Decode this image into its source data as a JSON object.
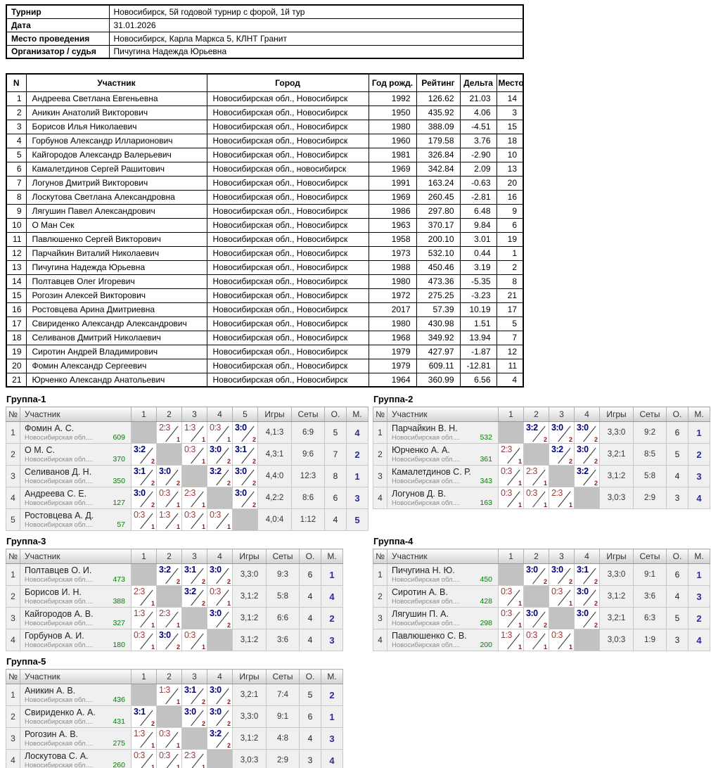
{
  "info": {
    "rows": [
      {
        "label": "Турнир",
        "value": "Новосибирск, 5й годовой турнир с форой, 1й тур"
      },
      {
        "label": "Дата",
        "value": "31.01.2026"
      },
      {
        "label": "Место проведения",
        "value": "Новосибирск, Карла Маркса 5, КЛНТ Гранит"
      },
      {
        "label": "Организатор / судья",
        "value": "Пичугина Надежда Юрьевна"
      }
    ]
  },
  "participants": {
    "headers": [
      "N",
      "Участник",
      "Город",
      "Год рожд.",
      "Рейтинг",
      "Дельта",
      "Место"
    ],
    "rows": [
      [
        "1",
        "Андреева Светлана Евгеньевна",
        "Новосибирская обл., Новосибирск",
        "1992",
        "126.62",
        "21.03",
        "14"
      ],
      [
        "2",
        "Аникин Анатолий Викторович",
        "Новосибирская обл., Новосибирск",
        "1950",
        "435.92",
        "4.06",
        "3"
      ],
      [
        "3",
        "Борисов Илья Николаевич",
        "Новосибирская обл., Новосибирск",
        "1980",
        "388.09",
        "-4.51",
        "15"
      ],
      [
        "4",
        "Горбунов Александр Илларионович",
        "Новосибирская обл., Новосибирск",
        "1960",
        "179.58",
        "3.76",
        "18"
      ],
      [
        "5",
        "Кайгородов Александр Валерьевич",
        "Новосибирская обл., Новосибирск",
        "1981",
        "326.84",
        "-2.90",
        "10"
      ],
      [
        "6",
        "Камалетдинов Сергей Рашитович",
        "Новосибирская обл., новосибирск",
        "1969",
        "342.84",
        "2.09",
        "13"
      ],
      [
        "7",
        "Логунов Дмитрий Викторович",
        "Новосибирская обл., Новосибирск",
        "1991",
        "163.24",
        "-0.63",
        "20"
      ],
      [
        "8",
        "Лоскутова Светлана Александровна",
        "Новосибирская обл., Новосибирск",
        "1969",
        "260.45",
        "-2.81",
        "16"
      ],
      [
        "9",
        "Лягушин Павел Александрович",
        "Новосибирская обл., Новосибирск",
        "1986",
        "297.80",
        "6.48",
        "9"
      ],
      [
        "10",
        "О Ман Сек",
        "Новосибирская обл., Новосибирск",
        "1963",
        "370.17",
        "9.84",
        "6"
      ],
      [
        "11",
        "Павлюшенко Сергей Викторович",
        "Новосибирская обл., Новосибирск",
        "1958",
        "200.10",
        "3.01",
        "19"
      ],
      [
        "12",
        "Парчайкин Виталий Николаевич",
        "Новосибирская обл., Новосибирск",
        "1973",
        "532.10",
        "0.44",
        "1"
      ],
      [
        "13",
        "Пичугина Надежда Юрьевна",
        "Новосибирская обл., Новосибирск",
        "1988",
        "450.46",
        "3.19",
        "2"
      ],
      [
        "14",
        "Полтавцев Олег Игоревич",
        "Новосибирская обл., Новосибирск",
        "1980",
        "473.36",
        "-5.35",
        "8"
      ],
      [
        "15",
        "Рогозин Алексей Викторович",
        "Новосибирская обл., Новосибирск",
        "1972",
        "275.25",
        "-3.23",
        "21"
      ],
      [
        "16",
        "Ростовцева Арина Дмитриевна",
        "Новосибирская обл., Новосибирск",
        "2017",
        "57.39",
        "10.19",
        "17"
      ],
      [
        "17",
        "Свириденко Александр Александрович",
        "Новосибирская обл., Новосибирск",
        "1980",
        "430.98",
        "1.51",
        "5"
      ],
      [
        "18",
        "Селиванов Дмитрий Николаевич",
        "Новосибирская обл., Новосибирск",
        "1968",
        "349.92",
        "13.94",
        "7"
      ],
      [
        "19",
        "Сиротин Андрей Владимирович",
        "Новосибирская обл., Новосибирск",
        "1979",
        "427.97",
        "-1.87",
        "12"
      ],
      [
        "20",
        "Фомин Александр Сергеевич",
        "Новосибирская обл., Новосибирск",
        "1979",
        "609.11",
        "-12.81",
        "11"
      ],
      [
        "21",
        "Юрченко Александр Анатольевич",
        "Новосибирская обл., Новосибирск",
        "1964",
        "360.99",
        "6.56",
        "4"
      ]
    ]
  },
  "group_headers": {
    "num": "№",
    "participant": "Участник",
    "games": "Игры",
    "sets": "Сеты",
    "points": "О.",
    "place": "М."
  },
  "colors": {
    "win": "#00007f",
    "loss": "#9a3b3b",
    "sub_points": "#8b1a1a",
    "rating": "#008000",
    "place": "#2b2b9f"
  },
  "groups": [
    {
      "title": "Группа-1",
      "game_cols": [
        "1",
        "2",
        "3",
        "4",
        "5"
      ],
      "rows": [
        {
          "num": "1",
          "name": "Фомин А. С.",
          "region": "Новосибирская обл....",
          "rating": "609",
          "cells": [
            null,
            {
              "s": "2:3",
              "p": "1",
              "w": false
            },
            {
              "s": "1:3",
              "p": "1",
              "w": false
            },
            {
              "s": "0:3",
              "p": "1",
              "w": false
            },
            {
              "s": "3:0",
              "p": "2",
              "w": true
            }
          ],
          "games": "4,1:3",
          "sets": "6:9",
          "points": "5",
          "place": "4"
        },
        {
          "num": "2",
          "name": "О М. С.",
          "region": "Новосибирская обл....",
          "rating": "370",
          "cells": [
            {
              "s": "3:2",
              "p": "2",
              "w": true
            },
            null,
            {
              "s": "0:3",
              "p": "1",
              "w": false
            },
            {
              "s": "3:0",
              "p": "2",
              "w": true
            },
            {
              "s": "3:1",
              "p": "2",
              "w": true
            }
          ],
          "games": "4,3:1",
          "sets": "9:6",
          "points": "7",
          "place": "2"
        },
        {
          "num": "3",
          "name": "Селиванов Д. Н.",
          "region": "Новосибирская обл....",
          "rating": "350",
          "cells": [
            {
              "s": "3:1",
              "p": "2",
              "w": true
            },
            {
              "s": "3:0",
              "p": "2",
              "w": true
            },
            null,
            {
              "s": "3:2",
              "p": "2",
              "w": true
            },
            {
              "s": "3:0",
              "p": "2",
              "w": true
            }
          ],
          "games": "4,4:0",
          "sets": "12:3",
          "points": "8",
          "place": "1"
        },
        {
          "num": "4",
          "name": "Андреева С. Е.",
          "region": "Новосибирская обл....",
          "rating": "127",
          "cells": [
            {
              "s": "3:0",
              "p": "2",
              "w": true
            },
            {
              "s": "0:3",
              "p": "1",
              "w": false
            },
            {
              "s": "2:3",
              "p": "1",
              "w": false
            },
            null,
            {
              "s": "3:0",
              "p": "2",
              "w": true
            }
          ],
          "games": "4,2:2",
          "sets": "8:6",
          "points": "6",
          "place": "3"
        },
        {
          "num": "5",
          "name": "Ростовцева А. Д.",
          "region": "Новосибирская обл....",
          "rating": "57",
          "cells": [
            {
              "s": "0:3",
              "p": "1",
              "w": false
            },
            {
              "s": "1:3",
              "p": "1",
              "w": false
            },
            {
              "s": "0:3",
              "p": "1",
              "w": false
            },
            {
              "s": "0:3",
              "p": "1",
              "w": false
            },
            null
          ],
          "games": "4,0:4",
          "sets": "1:12",
          "points": "4",
          "place": "5"
        }
      ]
    },
    {
      "title": "Группа-2",
      "game_cols": [
        "1",
        "2",
        "3",
        "4"
      ],
      "rows": [
        {
          "num": "1",
          "name": "Парчайкин В. Н.",
          "region": "Новосибирская обл....",
          "rating": "532",
          "cells": [
            null,
            {
              "s": "3:2",
              "p": "2",
              "w": true
            },
            {
              "s": "3:0",
              "p": "2",
              "w": true
            },
            {
              "s": "3:0",
              "p": "2",
              "w": true
            }
          ],
          "games": "3,3:0",
          "sets": "9:2",
          "points": "6",
          "place": "1"
        },
        {
          "num": "2",
          "name": "Юрченко А. А.",
          "region": "Новосибирская обл....",
          "rating": "361",
          "cells": [
            {
              "s": "2:3",
              "p": "1",
              "w": false
            },
            null,
            {
              "s": "3:2",
              "p": "2",
              "w": true
            },
            {
              "s": "3:0",
              "p": "2",
              "w": true
            }
          ],
          "games": "3,2:1",
          "sets": "8:5",
          "points": "5",
          "place": "2"
        },
        {
          "num": "3",
          "name": "Камалетдинов С. Р.",
          "region": "Новосибирская обл....",
          "rating": "343",
          "cells": [
            {
              "s": "0:3",
              "p": "1",
              "w": false
            },
            {
              "s": "2:3",
              "p": "1",
              "w": false
            },
            null,
            {
              "s": "3:2",
              "p": "2",
              "w": true
            }
          ],
          "games": "3,1:2",
          "sets": "5:8",
          "points": "4",
          "place": "3"
        },
        {
          "num": "4",
          "name": "Логунов Д. В.",
          "region": "Новосибирская обл....",
          "rating": "163",
          "cells": [
            {
              "s": "0:3",
              "p": "1",
              "w": false
            },
            {
              "s": "0:3",
              "p": "1",
              "w": false
            },
            {
              "s": "2:3",
              "p": "1",
              "w": false
            },
            null
          ],
          "games": "3,0:3",
          "sets": "2:9",
          "points": "3",
          "place": "4"
        }
      ]
    },
    {
      "title": "Группа-3",
      "game_cols": [
        "1",
        "2",
        "3",
        "4"
      ],
      "rows": [
        {
          "num": "1",
          "name": "Полтавцев О. И.",
          "region": "Новосибирская обл....",
          "rating": "473",
          "cells": [
            null,
            {
              "s": "3:2",
              "p": "2",
              "w": true
            },
            {
              "s": "3:1",
              "p": "2",
              "w": true
            },
            {
              "s": "3:0",
              "p": "2",
              "w": true
            }
          ],
          "games": "3,3:0",
          "sets": "9:3",
          "points": "6",
          "place": "1"
        },
        {
          "num": "2",
          "name": "Борисов И. Н.",
          "region": "Новосибирская обл....",
          "rating": "388",
          "cells": [
            {
              "s": "2:3",
              "p": "1",
              "w": false
            },
            null,
            {
              "s": "3:2",
              "p": "2",
              "w": true
            },
            {
              "s": "0:3",
              "p": "1",
              "w": false
            }
          ],
          "games": "3,1:2",
          "sets": "5:8",
          "points": "4",
          "place": "4"
        },
        {
          "num": "3",
          "name": "Кайгородов А. В.",
          "region": "Новосибирская обл....",
          "rating": "327",
          "cells": [
            {
              "s": "1:3",
              "p": "1",
              "w": false
            },
            {
              "s": "2:3",
              "p": "1",
              "w": false
            },
            null,
            {
              "s": "3:0",
              "p": "2",
              "w": true
            }
          ],
          "games": "3,1:2",
          "sets": "6:6",
          "points": "4",
          "place": "2"
        },
        {
          "num": "4",
          "name": "Горбунов А. И.",
          "region": "Новосибирская обл....",
          "rating": "180",
          "cells": [
            {
              "s": "0:3",
              "p": "1",
              "w": false
            },
            {
              "s": "3:0",
              "p": "2",
              "w": true
            },
            {
              "s": "0:3",
              "p": "1",
              "w": false
            },
            null
          ],
          "games": "3,1:2",
          "sets": "3:6",
          "points": "4",
          "place": "3"
        }
      ]
    },
    {
      "title": "Группа-4",
      "game_cols": [
        "1",
        "2",
        "3",
        "4"
      ],
      "rows": [
        {
          "num": "1",
          "name": "Пичугина Н. Ю.",
          "region": "Новосибирская обл....",
          "rating": "450",
          "cells": [
            null,
            {
              "s": "3:0",
              "p": "2",
              "w": true
            },
            {
              "s": "3:0",
              "p": "2",
              "w": true
            },
            {
              "s": "3:1",
              "p": "2",
              "w": true
            }
          ],
          "games": "3,3:0",
          "sets": "9:1",
          "points": "6",
          "place": "1"
        },
        {
          "num": "2",
          "name": "Сиротин А. В.",
          "region": "Новосибирская обл....",
          "rating": "428",
          "cells": [
            {
              "s": "0:3",
              "p": "1",
              "w": false
            },
            null,
            {
              "s": "0:3",
              "p": "1",
              "w": false
            },
            {
              "s": "3:0",
              "p": "2",
              "w": true
            }
          ],
          "games": "3,1:2",
          "sets": "3:6",
          "points": "4",
          "place": "3"
        },
        {
          "num": "3",
          "name": "Лягушин П. А.",
          "region": "Новосибирская обл....",
          "rating": "298",
          "cells": [
            {
              "s": "0:3",
              "p": "1",
              "w": false
            },
            {
              "s": "3:0",
              "p": "2",
              "w": true
            },
            null,
            {
              "s": "3:0",
              "p": "2",
              "w": true
            }
          ],
          "games": "3,2:1",
          "sets": "6:3",
          "points": "5",
          "place": "2"
        },
        {
          "num": "4",
          "name": "Павлюшенко С. В.",
          "region": "Новосибирская обл....",
          "rating": "200",
          "cells": [
            {
              "s": "1:3",
              "p": "1",
              "w": false
            },
            {
              "s": "0:3",
              "p": "1",
              "w": false
            },
            {
              "s": "0:3",
              "p": "1",
              "w": false
            },
            null
          ],
          "games": "3,0:3",
          "sets": "1:9",
          "points": "3",
          "place": "4"
        }
      ]
    },
    {
      "title": "Группа-5",
      "game_cols": [
        "1",
        "2",
        "3",
        "4"
      ],
      "rows": [
        {
          "num": "1",
          "name": "Аникин А. В.",
          "region": "Новосибирская обл....",
          "rating": "436",
          "cells": [
            null,
            {
              "s": "1:3",
              "p": "1",
              "w": false
            },
            {
              "s": "3:1",
              "p": "2",
              "w": true
            },
            {
              "s": "3:0",
              "p": "2",
              "w": true
            }
          ],
          "games": "3,2:1",
          "sets": "7:4",
          "points": "5",
          "place": "2"
        },
        {
          "num": "2",
          "name": "Свириденко А. А.",
          "region": "Новосибирская обл....",
          "rating": "431",
          "cells": [
            {
              "s": "3:1",
              "p": "2",
              "w": true
            },
            null,
            {
              "s": "3:0",
              "p": "2",
              "w": true
            },
            {
              "s": "3:0",
              "p": "2",
              "w": true
            }
          ],
          "games": "3,3:0",
          "sets": "9:1",
          "points": "6",
          "place": "1"
        },
        {
          "num": "3",
          "name": "Рогозин А. В.",
          "region": "Новосибирская обл....",
          "rating": "275",
          "cells": [
            {
              "s": "1:3",
              "p": "1",
              "w": false
            },
            {
              "s": "0:3",
              "p": "1",
              "w": false
            },
            null,
            {
              "s": "3:2",
              "p": "2",
              "w": true
            }
          ],
          "games": "3,1:2",
          "sets": "4:8",
          "points": "4",
          "place": "3"
        },
        {
          "num": "4",
          "name": "Лоскутова С. А.",
          "region": "Новосибирская обл....",
          "rating": "260",
          "cells": [
            {
              "s": "0:3",
              "p": "1",
              "w": false
            },
            {
              "s": "0:3",
              "p": "1",
              "w": false
            },
            {
              "s": "2:3",
              "p": "1",
              "w": false
            },
            null
          ],
          "games": "3,0:3",
          "sets": "2:9",
          "points": "3",
          "place": "4"
        }
      ]
    }
  ]
}
